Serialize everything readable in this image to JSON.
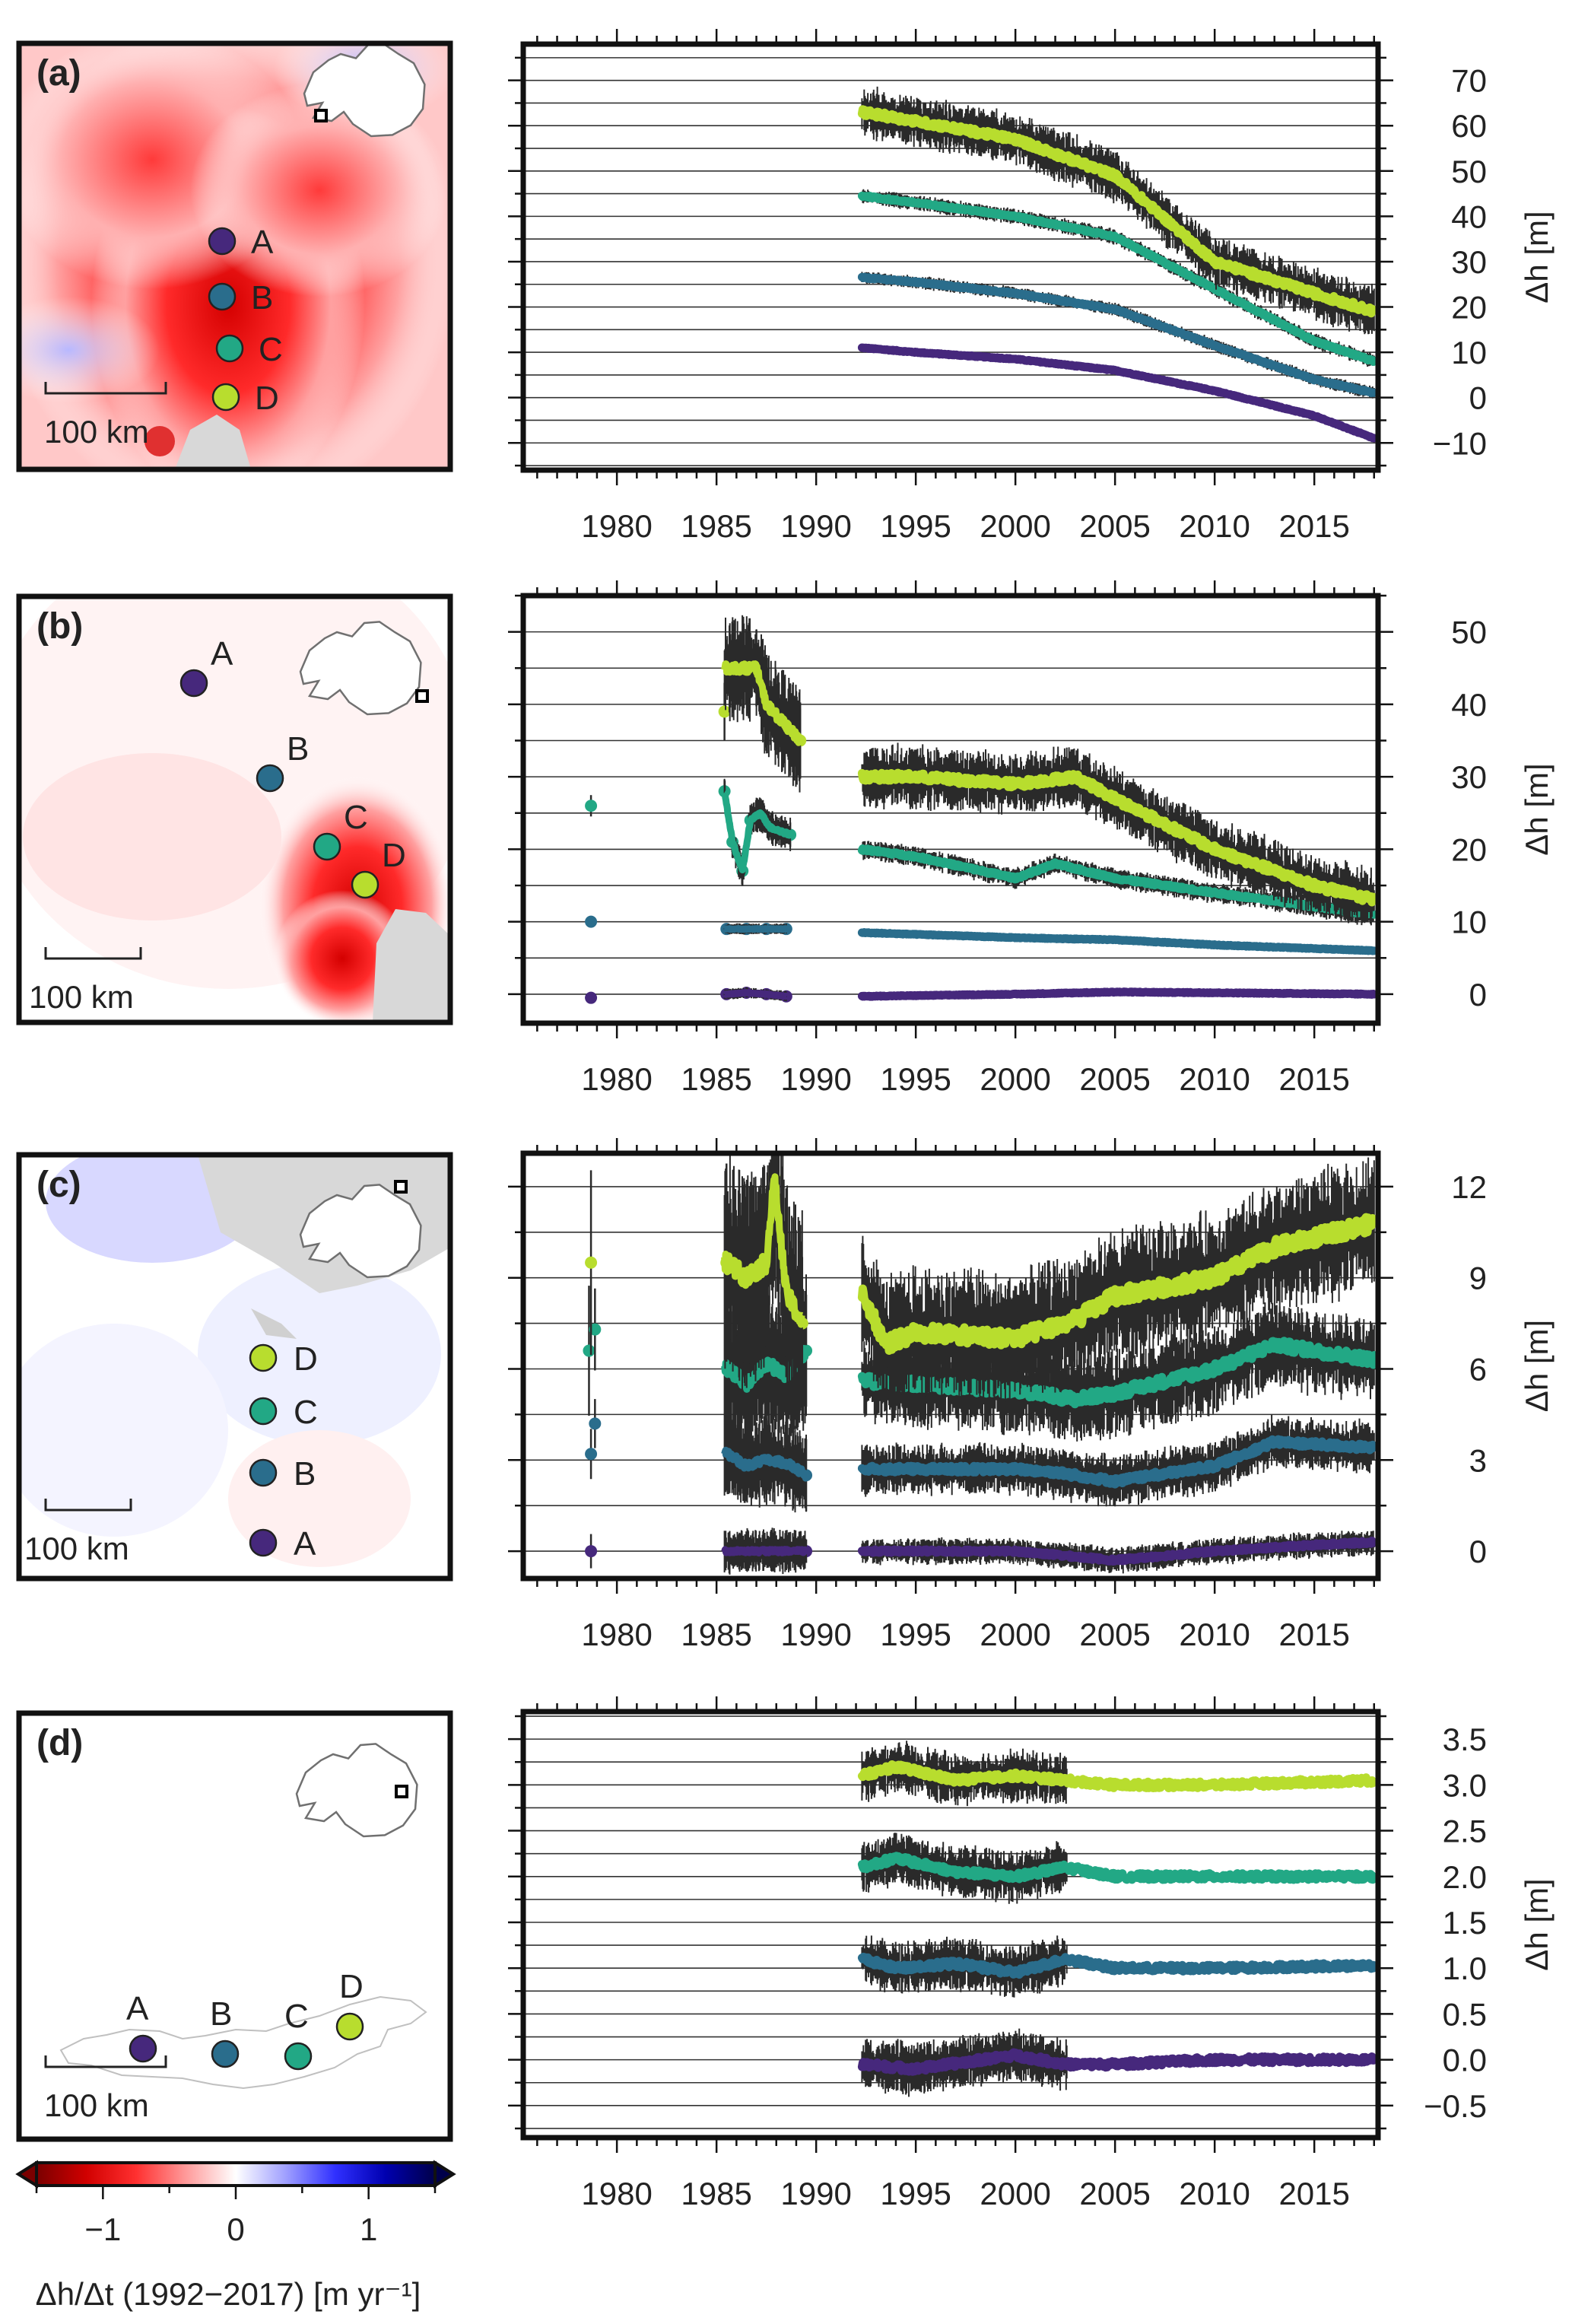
{
  "chart_data": {
    "type": "line",
    "x_ticks": [
      1980,
      1985,
      1990,
      1995,
      2000,
      2005,
      2010,
      2015
    ],
    "xlim": [
      1975.3,
      2018.2
    ],
    "site_names": [
      "A",
      "B",
      "C",
      "D"
    ],
    "site_colors": [
      "#46287c",
      "#2a6d8c",
      "#22a885",
      "#b8dd2e"
    ],
    "scale_bar_label": "100 km",
    "colorbar": {
      "range": [
        -1.5,
        1.5
      ],
      "ticks": [
        "−1",
        "0",
        "1"
      ],
      "label": "Δh/Δt (1992−2017) [m yr⁻¹]",
      "colors": [
        "#7a0000",
        "#d10000",
        "#ff3030",
        "#ff9a9a",
        "#ffffff",
        "#a0a0ff",
        "#3030ff",
        "#0000b0",
        "#00004a"
      ]
    },
    "panels": [
      {
        "label": "(a)",
        "ylabel": "Δh [m]",
        "ylim": [
          -16,
          78
        ],
        "ytick_labels": [
          "−10",
          "0",
          "10",
          "20",
          "30",
          "40",
          "50",
          "60",
          "70"
        ],
        "ytick_values": [
          -10,
          0,
          10,
          20,
          30,
          40,
          50,
          60,
          70
        ],
        "series": [
          {
            "name": "A",
            "x": [
              1992.3,
              1995,
              2000,
              2005,
              2010,
              2015,
              2018
            ],
            "values": [
              11,
              10,
              8.5,
              6,
              1.5,
              -4,
              -9
            ],
            "error": 0.6
          },
          {
            "name": "B",
            "x": [
              1992.3,
              1995,
              2000,
              2005,
              2010,
              2015,
              2018
            ],
            "values": [
              26.5,
              25.5,
              23,
              19.5,
              11.5,
              4,
              1
            ],
            "error": 1
          },
          {
            "name": "C",
            "x": [
              1992.3,
              1995,
              2000,
              2005,
              2010,
              2015,
              2018
            ],
            "values": [
              44.5,
              43,
              40,
              35.5,
              24,
              12.5,
              8
            ],
            "error": 1.2
          },
          {
            "name": "D",
            "x": [
              1992.3,
              1995,
              2000,
              2005,
              2010,
              2015,
              2018
            ],
            "values": [
              63,
              61,
              57,
              49,
              30,
              23,
              19
            ],
            "error": 4
          }
        ]
      },
      {
        "label": "(b)",
        "ylabel": "Δh [m]",
        "ylim": [
          -4,
          55
        ],
        "ytick_labels": [
          "0",
          "10",
          "20",
          "30",
          "40",
          "50"
        ],
        "ytick_values": [
          0,
          10,
          20,
          30,
          40,
          50
        ],
        "series": [
          {
            "name": "A",
            "x": [
              1992.3,
              2000,
              2005,
              2010,
              2018
            ],
            "values": [
              -0.3,
              0,
              0.3,
              0.2,
              0
            ],
            "error": 0.3,
            "early_x": [
              1978.7,
              1985.5,
              1986.5,
              1987.5,
              1988.5
            ],
            "early_values": [
              -0.5,
              0,
              0.2,
              0,
              -0.3
            ]
          },
          {
            "name": "B",
            "x": [
              1992.3,
              2000,
              2005,
              2010,
              2018
            ],
            "values": [
              8.5,
              7.8,
              7.5,
              6.8,
              6
            ],
            "error": 0.3,
            "early_x": [
              1978.7,
              1985.5,
              1986.5,
              1987.5,
              1988.5
            ],
            "early_values": [
              10,
              9,
              9,
              9,
              9
            ]
          },
          {
            "name": "C",
            "x": [
              1992.3,
              1995,
              2000,
              2002,
              2005,
              2010,
              2018
            ],
            "values": [
              20,
              19,
              16,
              18,
              16,
              14,
              11
            ],
            "error": 1,
            "early_x": [
              1978.7,
              1985.4,
              1985.8,
              1986.3,
              1986.7,
              1987.2,
              1987.7,
              1988.7
            ],
            "early_values": [
              26,
              28,
              21,
              17,
              24,
              25,
              23,
              22
            ]
          },
          {
            "name": "D",
            "x": [
              1992.3,
              1995,
              2000,
              2003,
              2005,
              2010,
              2015,
              2018
            ],
            "values": [
              30,
              30,
              29,
              30,
              27,
              20,
              15,
              13
            ],
            "error": 3,
            "early_x": [
              1985.4,
              1987,
              1987.5,
              1988.5,
              1989.2
            ],
            "early_values": [
              39,
              45,
              40,
              37,
              35
            ]
          }
        ]
      },
      {
        "label": "(c)",
        "ylabel": "Δh [m]",
        "ylim": [
          -0.9,
          13.1
        ],
        "ytick_labels": [
          "0",
          "3",
          "6",
          "9",
          "12"
        ],
        "ytick_values": [
          0,
          3,
          6,
          9,
          12
        ],
        "series": [
          {
            "name": "A",
            "x": [
              1992.3,
              2000,
              2005,
              2010,
              2015,
              2018
            ],
            "values": [
              0,
              0,
              -0.3,
              0,
              0.2,
              0.3
            ],
            "error": 0.3,
            "early_x": [
              1978.7,
              1985.6,
              1986.5,
              1987.5,
              1988.5,
              1989.5
            ],
            "early_values": [
              0,
              0,
              0,
              0,
              0,
              0
            ]
          },
          {
            "name": "B",
            "x": [
              1992.3,
              2000,
              2002,
              2005,
              2010,
              2013,
              2018
            ],
            "values": [
              2.7,
              2.7,
              2.6,
              2.3,
              2.8,
              3.6,
              3.4
            ],
            "error": 0.6,
            "early_x": [
              1978.7,
              1978.9,
              1985.6,
              1986.5,
              1987.5,
              1988.5,
              1989.5
            ],
            "early_values": [
              3.2,
              4.2,
              3.2,
              2.8,
              3.0,
              2.9,
              2.5
            ]
          },
          {
            "name": "C",
            "x": [
              1992.3,
              1995,
              2000,
              2003,
              2005,
              2010,
              2013,
              2018
            ],
            "values": [
              5.6,
              5.5,
              5.3,
              5.0,
              5.2,
              6.0,
              6.8,
              6.3
            ],
            "error": 1,
            "early_x": [
              1978.6,
              1978.9,
              1985.6,
              1986.5,
              1987.5,
              1988.5,
              1989.5
            ],
            "early_values": [
              6.6,
              7.3,
              6.0,
              5.5,
              6.2,
              5.8,
              6.6
            ]
          },
          {
            "name": "D",
            "x": [
              1992.3,
              1993.5,
              1995,
              2000,
              2003,
              2005,
              2010,
              2013,
              2018
            ],
            "values": [
              8.5,
              6.8,
              7.2,
              7.0,
              7.6,
              8.4,
              9.0,
              10.0,
              10.8
            ],
            "error": 1.5,
            "early_x": [
              1978.7,
              1985.5,
              1986.5,
              1987.5,
              1987.9,
              1988.5,
              1989.3
            ],
            "early_values": [
              9.5,
              9.5,
              9.0,
              9.5,
              12.3,
              8.5,
              7.5
            ]
          }
        ]
      },
      {
        "label": "(d)",
        "ylabel": "Δh [m]",
        "ylim": [
          -0.85,
          3.8
        ],
        "ytick_labels": [
          "−0.5",
          "0.0",
          "0.5",
          "1.0",
          "1.5",
          "2.0",
          "2.5",
          "3.0",
          "3.5"
        ],
        "ytick_values": [
          -0.5,
          0,
          0.5,
          1,
          1.5,
          2,
          2.5,
          3,
          3.5
        ],
        "series": [
          {
            "name": "A",
            "x": [
              1992.3,
              1995,
              2000,
              2002.5,
              2005,
              2010,
              2018
            ],
            "values": [
              -0.05,
              -0.1,
              0.05,
              -0.05,
              -0.05,
              0,
              0
            ],
            "error": 0.2
          },
          {
            "name": "B",
            "x": [
              1992.3,
              1994,
              1997,
              2000,
              2002.5,
              2005,
              2010,
              2018
            ],
            "values": [
              1.1,
              1.0,
              1.05,
              0.95,
              1.1,
              1.0,
              1.0,
              1.03
            ],
            "error": 0.2
          },
          {
            "name": "C",
            "x": [
              1992.3,
              1994,
              1997,
              2000,
              2002.5,
              2005,
              2010,
              2018
            ],
            "values": [
              2.1,
              2.2,
              2.05,
              2.0,
              2.1,
              2.0,
              2.0,
              2.0
            ],
            "error": 0.2
          },
          {
            "name": "D",
            "x": [
              1992.3,
              1994,
              1997,
              2000,
              2002.5,
              2005,
              2010,
              2018
            ],
            "values": [
              3.1,
              3.2,
              3.05,
              3.1,
              3.05,
              3.0,
              3.0,
              3.05
            ],
            "error": 0.2
          }
        ]
      }
    ]
  }
}
